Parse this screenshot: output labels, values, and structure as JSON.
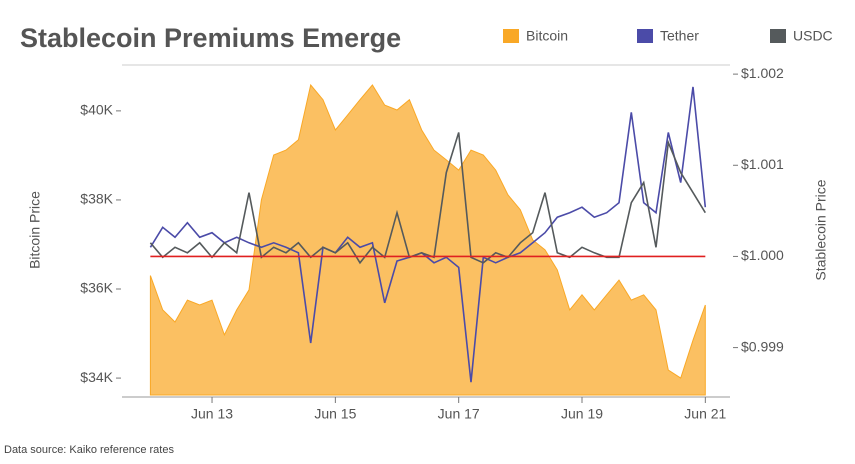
{
  "chart_data": {
    "type": "area_line_dual",
    "title": "Stablecoin Premiums Emerge",
    "source": "Data source: Kaiko reference rates",
    "ylabel": "Bitcoin Price",
    "y2label": "Stablecoin Price",
    "x": [
      12.0,
      12.2,
      12.4,
      12.6,
      12.8,
      13.0,
      13.2,
      13.4,
      13.6,
      13.8,
      14.0,
      14.2,
      14.4,
      14.6,
      14.8,
      15.0,
      15.2,
      15.4,
      15.6,
      15.8,
      16.0,
      16.2,
      16.4,
      16.6,
      16.8,
      17.0,
      17.2,
      17.4,
      17.6,
      17.8,
      18.0,
      18.2,
      18.4,
      18.6,
      18.8,
      19.0,
      19.2,
      19.4,
      19.6,
      19.8,
      20.0,
      20.2,
      20.4,
      20.6,
      20.8,
      21.0
    ],
    "xlim": [
      11.54,
      21.4
    ],
    "xticks": [
      {
        "value": 13,
        "label": "Jun 13"
      },
      {
        "value": 15,
        "label": "Jun 15"
      },
      {
        "value": 17,
        "label": "Jun 17"
      },
      {
        "value": 19,
        "label": "Jun 19"
      },
      {
        "value": 21,
        "label": "Jun 21"
      }
    ],
    "ylim": [
      33620,
      41030
    ],
    "yticks": [
      {
        "value": 34000,
        "label": "$34K"
      },
      {
        "value": 36000,
        "label": "$36K"
      },
      {
        "value": 38000,
        "label": "$38K"
      },
      {
        "value": 40000,
        "label": "$40K"
      }
    ],
    "y2lim": [
      0.99848,
      1.0021
    ],
    "y2ticks": [
      {
        "value": 0.999,
        "label": "$0.999"
      },
      {
        "value": 1.0,
        "label": "$1.000"
      },
      {
        "value": 1.001,
        "label": "$1.001"
      },
      {
        "value": 1.002,
        "label": "$1.002"
      }
    ],
    "reference_line": {
      "value": 1.0,
      "axis": "y2",
      "color": "#e02020"
    },
    "series": [
      {
        "name": "Bitcoin",
        "color": "#f9a826",
        "kind": "area",
        "values": [
          36300,
          35530,
          35260,
          35750,
          35640,
          35750,
          34970,
          35530,
          35980,
          38000,
          39010,
          39120,
          39350,
          40580,
          40250,
          39570,
          39910,
          40250,
          40580,
          40130,
          40020,
          40250,
          39570,
          39120,
          38900,
          38670,
          39120,
          39010,
          38670,
          38110,
          37780,
          37100,
          36880,
          36430,
          35530,
          35870,
          35530,
          35870,
          36200,
          35750,
          35870,
          35530,
          34180,
          34000,
          34850,
          35640
        ]
      },
      {
        "name": "Tether",
        "color": "#4b4ba8",
        "kind": "line",
        "axis": "y2",
        "values": [
          1.0001,
          1.00032,
          1.00021,
          1.00037,
          1.00021,
          1.00026,
          1.00015,
          1.00021,
          1.00015,
          1.0001,
          1.00015,
          1.0001,
          1.00004,
          0.99905,
          1.0001,
          1.00004,
          1.00021,
          1.0001,
          1.00015,
          0.99949,
          0.99995,
          0.99999,
          1.00004,
          0.99993,
          0.99999,
          0.99988,
          0.99862,
          0.99999,
          0.99993,
          0.99999,
          1.00004,
          1.00015,
          1.00026,
          1.00043,
          1.00048,
          1.00054,
          1.00043,
          1.00048,
          1.00059,
          1.00158,
          1.00059,
          1.00048,
          1.00136,
          1.00081,
          1.00186,
          1.00054
        ]
      },
      {
        "name": "USDC",
        "color": "#555a5c",
        "kind": "line",
        "axis": "y2",
        "values": [
          1.00015,
          0.99999,
          1.0001,
          1.00004,
          1.00015,
          0.99999,
          1.00015,
          1.00004,
          1.0007,
          0.99999,
          1.0001,
          1.00004,
          1.00015,
          0.99999,
          1.0001,
          1.00004,
          1.00015,
          0.99993,
          1.0001,
          0.99999,
          1.00048,
          0.99999,
          1.00004,
          0.99999,
          1.00092,
          1.00136,
          0.99999,
          0.99993,
          1.00004,
          0.99999,
          1.00015,
          1.00026,
          1.0007,
          1.00004,
          0.99999,
          1.0001,
          1.00004,
          0.99999,
          0.99999,
          1.00059,
          1.00081,
          1.0001,
          1.00125,
          1.00092,
          1.0007,
          1.00048
        ]
      }
    ]
  }
}
